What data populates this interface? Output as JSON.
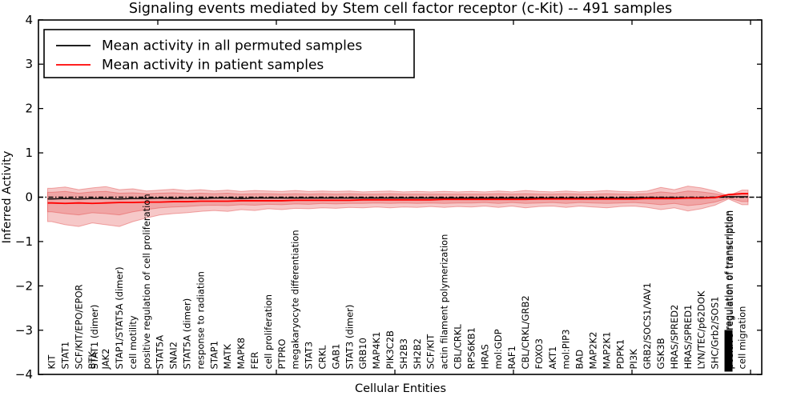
{
  "window": {
    "title": "Signaling events mediated by Stem cell factor receptor (c-Kit) -- 491 samples"
  },
  "chart_data": {
    "type": "line",
    "title": "Signaling events mediated by Stem cell factor receptor (c-Kit) -- 491 samples",
    "samples_label": "491 samples",
    "xlabel": "Cellular Entities",
    "ylabel": "Inferred Activity",
    "ylim": [
      -4,
      4
    ],
    "yticks": [
      4,
      3,
      2,
      1,
      0,
      -1,
      -2,
      -3,
      -4
    ],
    "grid": false,
    "legend_position": "upper left",
    "legend": [
      {
        "label": "Mean activity in all permuted samples",
        "color": "#000000"
      },
      {
        "label": "Mean activity in patient samples",
        "color": "#ff0000"
      }
    ],
    "zero_line": {
      "value": 0,
      "style": "dash-dot",
      "color": "#000000"
    },
    "band_color": "#e24a4a",
    "categories": [
      {
        "label": "KIT"
      },
      {
        "label": "STAT1"
      },
      {
        "label": "SCF/KIT/EPO/EPOR"
      },
      {
        "label": "BTK",
        "overlap_label": "STAT1 (dimer)"
      },
      {
        "label": "JAK2"
      },
      {
        "label": "STAP1/STAT5A (dimer)"
      },
      {
        "label": "cell motility"
      },
      {
        "label": "positive regulation of cell proliferation"
      },
      {
        "label": "STAT5A"
      },
      {
        "label": "SNAI2"
      },
      {
        "label": "STAT5A (dimer)"
      },
      {
        "label": "response to radiation"
      },
      {
        "label": "STAP1"
      },
      {
        "label": "MATK"
      },
      {
        "label": "MAPK8"
      },
      {
        "label": "FER"
      },
      {
        "label": "cell proliferation"
      },
      {
        "label": "PTPRO"
      },
      {
        "label": "megakaryocyte differentiation"
      },
      {
        "label": "STAT3"
      },
      {
        "label": "CRKL"
      },
      {
        "label": "GAB1"
      },
      {
        "label": "STAT3 (dimer)"
      },
      {
        "label": "GRB10"
      },
      {
        "label": "MAP4K1"
      },
      {
        "label": "PIK3C2B"
      },
      {
        "label": "SH2B3"
      },
      {
        "label": "SH2B2"
      },
      {
        "label": "SCF/KIT"
      },
      {
        "label": "actin filament polymerization"
      },
      {
        "label": "CBL/CRKL"
      },
      {
        "label": "RPS6KB1"
      },
      {
        "label": "HRAS"
      },
      {
        "label": "mol:GDP"
      },
      {
        "label": "RAF1"
      },
      {
        "label": "CBL/CRKL/GRB2"
      },
      {
        "label": "FOXO3"
      },
      {
        "label": "AKT1"
      },
      {
        "label": "mol:PIP3"
      },
      {
        "label": "BAD"
      },
      {
        "label": "MAP2K2"
      },
      {
        "label": "MAP2K1"
      },
      {
        "label": "PDPK1"
      },
      {
        "label": "PI3K"
      },
      {
        "label": "GRB2/SOCS1/VAV1"
      },
      {
        "label": "GSK3B"
      },
      {
        "label": "HRAS/SPRED2"
      },
      {
        "label": "HRAS/SPRED1"
      },
      {
        "label": "LYN/TEC/p62DOK"
      },
      {
        "label": "SHC/Grb2/SOS1"
      },
      {
        "label": "positive regulation of transcription",
        "blob": true
      },
      {
        "label": "cell migration"
      }
    ],
    "series": [
      {
        "name": "Mean activity in all permuted samples",
        "color": "#000000",
        "values": [
          -0.04,
          -0.03,
          -0.04,
          -0.03,
          -0.03,
          -0.04,
          -0.03,
          -0.03,
          -0.02,
          -0.03,
          -0.02,
          -0.03,
          -0.02,
          -0.02,
          -0.03,
          -0.02,
          -0.02,
          -0.02,
          -0.02,
          -0.02,
          -0.02,
          -0.02,
          -0.02,
          -0.02,
          -0.02,
          -0.02,
          -0.02,
          -0.02,
          -0.02,
          -0.02,
          -0.02,
          -0.02,
          -0.02,
          -0.02,
          -0.02,
          -0.02,
          -0.02,
          -0.02,
          -0.02,
          -0.02,
          -0.02,
          -0.02,
          -0.02,
          -0.01,
          -0.01,
          -0.01,
          -0.01,
          -0.01,
          -0.01,
          0.0,
          0.01,
          0.01
        ]
      },
      {
        "name": "Mean activity in patient samples",
        "color": "#ff0000",
        "values": [
          -0.13,
          -0.14,
          -0.13,
          -0.14,
          -0.13,
          -0.12,
          -0.12,
          -0.11,
          -0.11,
          -0.1,
          -0.1,
          -0.09,
          -0.09,
          -0.09,
          -0.08,
          -0.08,
          -0.08,
          -0.08,
          -0.07,
          -0.07,
          -0.07,
          -0.07,
          -0.07,
          -0.06,
          -0.06,
          -0.06,
          -0.06,
          -0.06,
          -0.06,
          -0.05,
          -0.05,
          -0.05,
          -0.05,
          -0.05,
          -0.05,
          -0.05,
          -0.04,
          -0.04,
          -0.04,
          -0.04,
          -0.04,
          -0.04,
          -0.04,
          -0.04,
          -0.03,
          -0.03,
          -0.03,
          -0.02,
          -0.02,
          -0.01,
          0.06,
          0.08
        ]
      }
    ],
    "band_outer": {
      "upper": [
        0.2,
        0.23,
        0.17,
        0.21,
        0.24,
        0.17,
        0.19,
        0.14,
        0.16,
        0.18,
        0.15,
        0.17,
        0.14,
        0.16,
        0.13,
        0.15,
        0.14,
        0.13,
        0.15,
        0.13,
        0.14,
        0.13,
        0.14,
        0.12,
        0.13,
        0.14,
        0.12,
        0.13,
        0.12,
        0.13,
        0.12,
        0.13,
        0.12,
        0.14,
        0.12,
        0.15,
        0.13,
        0.12,
        0.14,
        0.12,
        0.13,
        0.15,
        0.13,
        0.12,
        0.14,
        0.22,
        0.17,
        0.25,
        0.21,
        0.14,
        0.03,
        0.16
      ],
      "lower": [
        -0.55,
        -0.62,
        -0.66,
        -0.58,
        -0.62,
        -0.66,
        -0.55,
        -0.47,
        -0.4,
        -0.37,
        -0.35,
        -0.32,
        -0.3,
        -0.32,
        -0.28,
        -0.3,
        -0.26,
        -0.28,
        -0.25,
        -0.26,
        -0.24,
        -0.25,
        -0.23,
        -0.24,
        -0.22,
        -0.24,
        -0.22,
        -0.23,
        -0.21,
        -0.23,
        -0.21,
        -0.22,
        -0.2,
        -0.23,
        -0.2,
        -0.24,
        -0.21,
        -0.2,
        -0.23,
        -0.2,
        -0.22,
        -0.24,
        -0.21,
        -0.2,
        -0.23,
        -0.28,
        -0.24,
        -0.31,
        -0.26,
        -0.18,
        -0.04,
        -0.17
      ]
    },
    "band_inner": {
      "upper": [
        0.11,
        0.13,
        0.09,
        0.12,
        0.13,
        0.09,
        0.1,
        0.08,
        0.09,
        0.1,
        0.08,
        0.09,
        0.08,
        0.09,
        0.07,
        0.08,
        0.08,
        0.07,
        0.08,
        0.07,
        0.08,
        0.07,
        0.08,
        0.07,
        0.07,
        0.08,
        0.07,
        0.07,
        0.07,
        0.07,
        0.07,
        0.07,
        0.07,
        0.08,
        0.07,
        0.08,
        0.07,
        0.07,
        0.08,
        0.07,
        0.07,
        0.08,
        0.07,
        0.07,
        0.08,
        0.12,
        0.09,
        0.14,
        0.12,
        0.08,
        0.02,
        0.09
      ],
      "lower": [
        -0.33,
        -0.37,
        -0.4,
        -0.35,
        -0.37,
        -0.4,
        -0.33,
        -0.28,
        -0.24,
        -0.22,
        -0.21,
        -0.19,
        -0.18,
        -0.19,
        -0.17,
        -0.18,
        -0.16,
        -0.17,
        -0.15,
        -0.16,
        -0.14,
        -0.15,
        -0.14,
        -0.14,
        -0.13,
        -0.14,
        -0.13,
        -0.14,
        -0.13,
        -0.14,
        -0.13,
        -0.13,
        -0.12,
        -0.14,
        -0.12,
        -0.14,
        -0.13,
        -0.12,
        -0.14,
        -0.12,
        -0.13,
        -0.14,
        -0.13,
        -0.12,
        -0.14,
        -0.17,
        -0.14,
        -0.19,
        -0.16,
        -0.11,
        -0.02,
        -0.1
      ]
    }
  }
}
